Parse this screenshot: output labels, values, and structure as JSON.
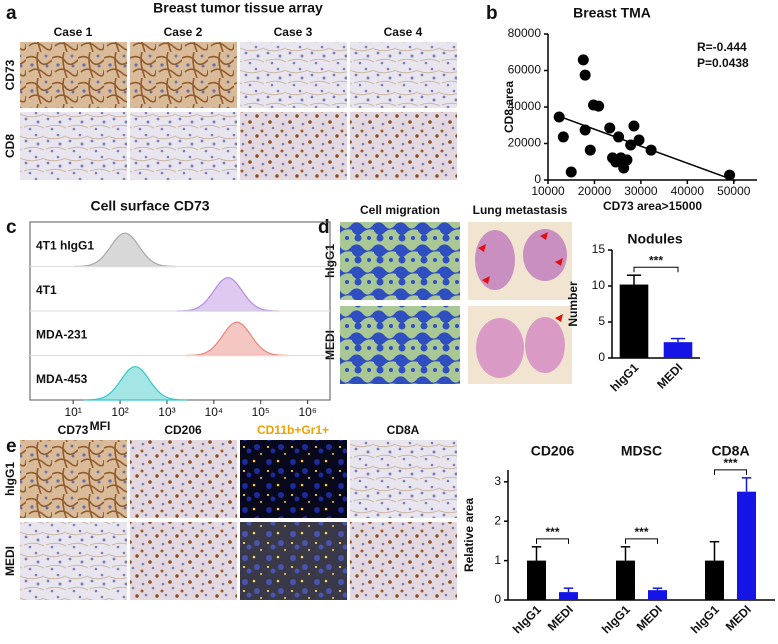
{
  "panel_labels": [
    "a",
    "b",
    "c",
    "d",
    "e"
  ],
  "panel_a": {
    "title": "Breast tumor tissue array",
    "columns": [
      "Case 1",
      "Case 2",
      "Case 3",
      "Case 4"
    ],
    "rows": [
      "CD73",
      "CD8"
    ]
  },
  "panel_d": {
    "columns": [
      "Cell migration",
      "Lung metastasis"
    ],
    "rows": [
      "hIgG1",
      "MEDI"
    ]
  },
  "panel_e": {
    "columns": [
      "CD73",
      "CD206",
      "CD11b+Gr1+",
      "CD8A"
    ],
    "rows": [
      "hIgG1",
      "MEDI"
    ]
  },
  "chart_data": [
    {
      "type": "scatter",
      "title": "Breast TMA",
      "x_label": "CD73 area>15000",
      "y_label": "CD8 area",
      "annotations": [
        "R=-0.444",
        "P=0.0438"
      ],
      "x": [
        12400,
        13300,
        15000,
        17600,
        18000,
        18000,
        19800,
        20900,
        19100,
        23300,
        23900,
        24600,
        25200,
        25700,
        26300,
        27000,
        27800,
        28500,
        29600,
        32200,
        49100
      ],
      "y": [
        34500,
        23600,
        4400,
        65800,
        57500,
        27400,
        41100,
        40500,
        16400,
        28500,
        12100,
        9900,
        23600,
        12100,
        6600,
        11000,
        19200,
        29600,
        21900,
        16400,
        2700
      ],
      "color": "#000000",
      "fit_line": true,
      "xlim": [
        10000,
        55000
      ],
      "xticks": [
        10000,
        20000,
        30000,
        40000,
        50000
      ],
      "ylim": [
        0,
        80000
      ],
      "yticks": [
        0,
        20000,
        40000,
        60000,
        80000
      ]
    },
    {
      "type": "density",
      "title": "Cell surface CD73",
      "x_label": "MFI",
      "log_x": true,
      "xlim": [
        1.2,
        3000000
      ],
      "xticks": [
        {
          "value": 10,
          "label": "10¹"
        },
        {
          "value": 100,
          "label": "10²"
        },
        {
          "value": 1000,
          "label": "10³"
        },
        {
          "value": 10000,
          "label": "10⁴"
        },
        {
          "value": 100000,
          "label": "10⁵"
        },
        {
          "value": 1000000,
          "label": "10⁶"
        }
      ],
      "series": [
        {
          "name": "4T1 hIgG1",
          "color": "#a8a8a8",
          "peak": 127
        },
        {
          "name": "4T1",
          "color": "#b58ae0",
          "peak": 20000
        },
        {
          "name": "MDA-231",
          "color": "#e8837a",
          "peak": 31000
        },
        {
          "name": "MDA-453",
          "color": "#35c6c6",
          "peak": 210
        }
      ]
    },
    {
      "type": "bar",
      "title": "Nodules",
      "y_label": "Number",
      "categories": [
        "hIgG1",
        "MEDI"
      ],
      "values": [
        10.2,
        2.2
      ],
      "errors": [
        1.3,
        0.5
      ],
      "colors": [
        "#000000",
        "#1414e6"
      ],
      "ylim": [
        0,
        15
      ],
      "yticks": [
        0,
        5,
        10,
        15
      ],
      "significance": [
        "***"
      ]
    },
    {
      "type": "bar",
      "y_label": "Relative area",
      "groups": [
        "CD206",
        "MDSC",
        "CD8A"
      ],
      "series": [
        {
          "name": "hIgG1",
          "color": "#000000",
          "values": [
            1,
            1,
            1
          ],
          "errors": [
            0.35,
            0.35,
            0.48
          ]
        },
        {
          "name": "MEDI",
          "color": "#1414e6",
          "values": [
            0.2,
            0.25,
            2.75
          ],
          "errors": [
            0.1,
            0.05,
            0.35
          ]
        }
      ],
      "ylim": [
        0,
        3.3
      ],
      "yticks": [
        0,
        1,
        2,
        3
      ],
      "significance": [
        "***",
        "***",
        "***"
      ]
    }
  ]
}
